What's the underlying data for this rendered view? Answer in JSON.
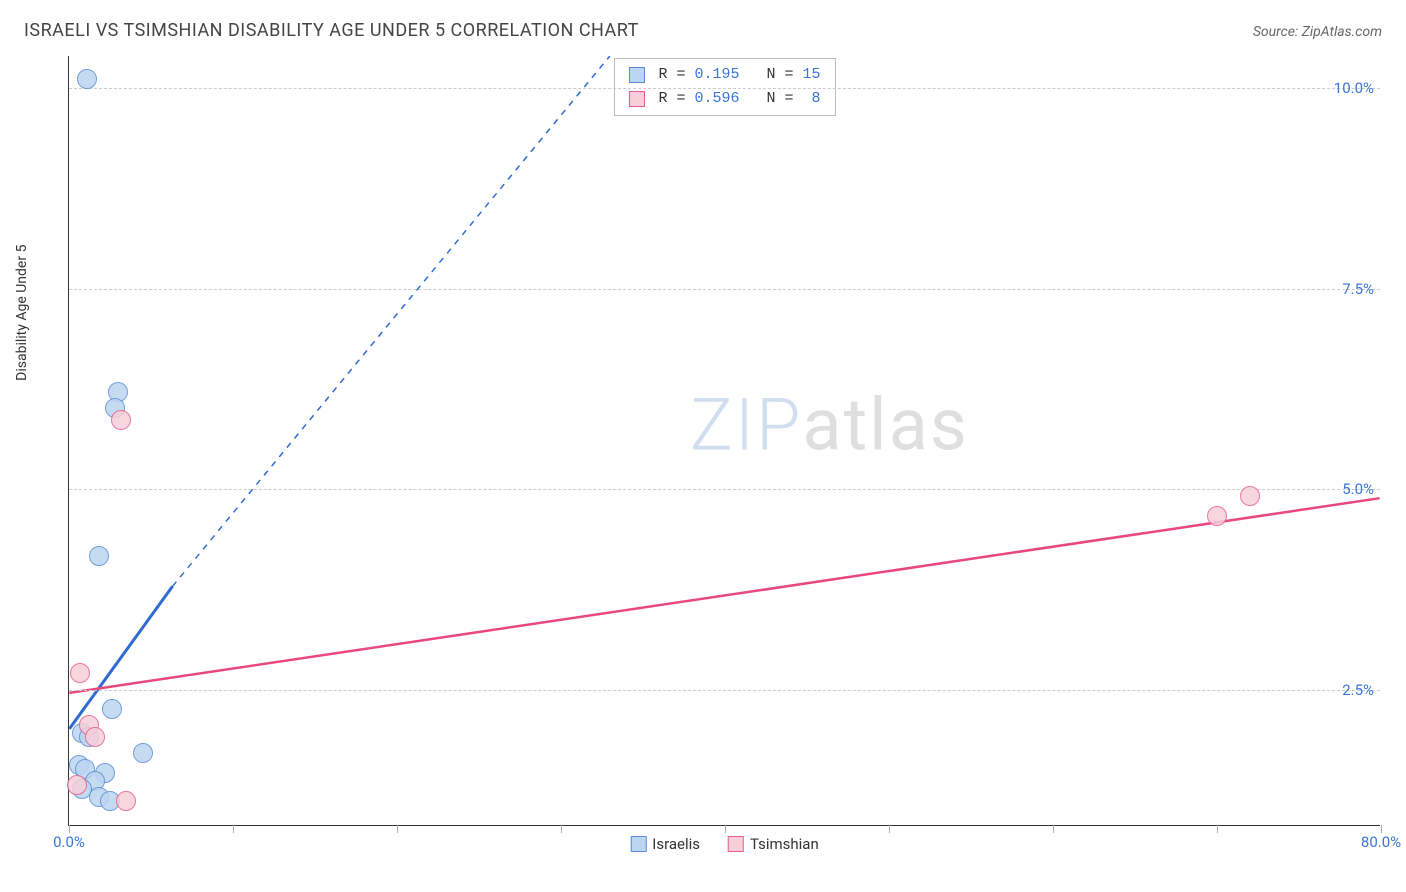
{
  "title": "ISRAELI VS TSIMSHIAN DISABILITY AGE UNDER 5 CORRELATION CHART",
  "source_label": "Source: ZipAtlas.com",
  "y_axis_label": "Disability Age Under 5",
  "watermark": {
    "prefix": "ZIP",
    "suffix": "atlas"
  },
  "chart": {
    "type": "scatter",
    "background_color": "#ffffff",
    "grid_color": "#cccccc",
    "axis_color": "#333333",
    "xlim": [
      0,
      80
    ],
    "ylim": [
      0.8,
      10.4
    ],
    "x_ticks": [
      0,
      10,
      20,
      30,
      40,
      50,
      60,
      70,
      80
    ],
    "x_tick_labels": {
      "0": "0.0%",
      "80": "80.0%"
    },
    "x_tick_label_color": "#3a76d6",
    "y_gridlines": [
      2.5,
      5.0,
      7.5,
      10.0
    ],
    "y_tick_labels": [
      "2.5%",
      "5.0%",
      "7.5%",
      "10.0%"
    ],
    "y_tick_label_color": "#3a76d6",
    "marker_radius": 10,
    "marker_stroke_width": 1.2,
    "series": [
      {
        "name": "Israelis",
        "fill": "#bcd5f0",
        "stroke": "#5a8fd6",
        "r_value": "0.195",
        "n_value": "15",
        "trend": {
          "x1": 0,
          "y1": 2.0,
          "x2": 6.3,
          "y2": 3.78,
          "x2_ext": 33,
          "y2_ext": 10.4,
          "color": "#2f6bd1",
          "width": 3,
          "dash": "6 6"
        },
        "points": [
          {
            "x": 1.1,
            "y": 10.1
          },
          {
            "x": 3.0,
            "y": 6.2
          },
          {
            "x": 2.8,
            "y": 6.0
          },
          {
            "x": 1.8,
            "y": 4.15
          },
          {
            "x": 2.6,
            "y": 2.25
          },
          {
            "x": 0.8,
            "y": 1.95
          },
          {
            "x": 1.2,
            "y": 1.9
          },
          {
            "x": 4.5,
            "y": 1.7
          },
          {
            "x": 0.6,
            "y": 1.55
          },
          {
            "x": 1.0,
            "y": 1.5
          },
          {
            "x": 2.2,
            "y": 1.45
          },
          {
            "x": 1.6,
            "y": 1.35
          },
          {
            "x": 0.8,
            "y": 1.25
          },
          {
            "x": 1.8,
            "y": 1.15
          },
          {
            "x": 2.5,
            "y": 1.1
          }
        ]
      },
      {
        "name": "Tsimshian",
        "fill": "#f7cfda",
        "stroke": "#e65f8b",
        "r_value": "0.596",
        "n_value": "8",
        "trend": {
          "x1": 0,
          "y1": 2.45,
          "x2": 80,
          "y2": 4.88,
          "color": "#e8487a",
          "width": 2.5
        },
        "points": [
          {
            "x": 3.2,
            "y": 5.85
          },
          {
            "x": 72.0,
            "y": 4.9
          },
          {
            "x": 70.0,
            "y": 4.65
          },
          {
            "x": 0.7,
            "y": 2.7
          },
          {
            "x": 1.2,
            "y": 2.05
          },
          {
            "x": 1.6,
            "y": 1.9
          },
          {
            "x": 0.5,
            "y": 1.3
          },
          {
            "x": 3.5,
            "y": 1.1
          }
        ]
      }
    ]
  },
  "top_legend_labels": {
    "r": "R =",
    "n": "N ="
  },
  "bottom_legend": [
    "Israelis",
    "Tsimshian"
  ]
}
